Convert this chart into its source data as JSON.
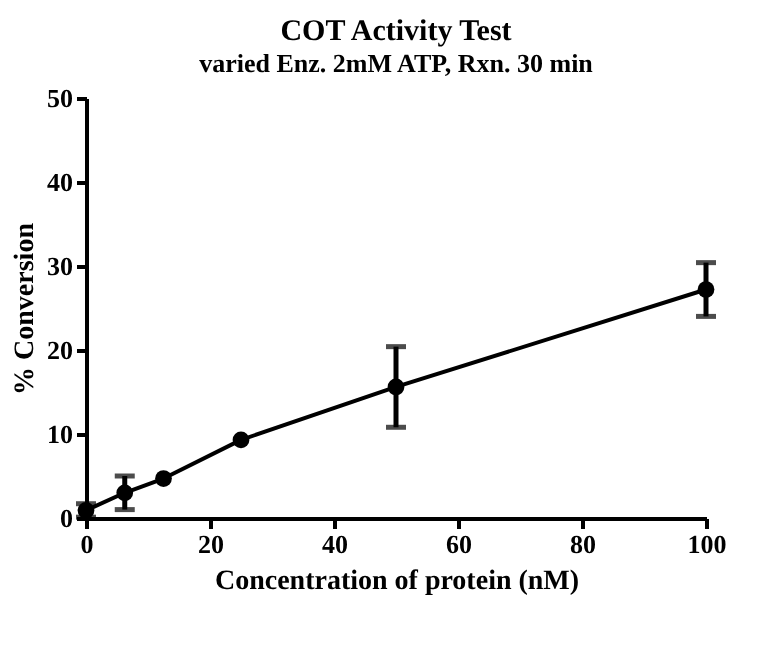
{
  "chart_data": {
    "type": "line",
    "title": "COT Activity Test",
    "subtitle": "varied Enz. 2mM ATP, Rxn. 30 min",
    "xlabel": "Concentration of protein (nM)",
    "ylabel": "% Conversion",
    "x": [
      0,
      6.25,
      12.5,
      25,
      50,
      100
    ],
    "series": [
      {
        "color": "#000000",
        "values": [
          0.9,
          3.0,
          4.7,
          9.3,
          15.6,
          27.2
        ],
        "errors": [
          0.8,
          2.0,
          null,
          null,
          4.8,
          3.2
        ]
      }
    ],
    "xlim": [
      0,
      100
    ],
    "xticks": [
      0,
      20,
      40,
      60,
      80,
      100
    ],
    "ylim": [
      0,
      50
    ],
    "yticks": [
      0,
      10,
      20,
      30,
      40,
      50
    ],
    "grid": false,
    "marker": "circle",
    "line_style": "solid"
  }
}
